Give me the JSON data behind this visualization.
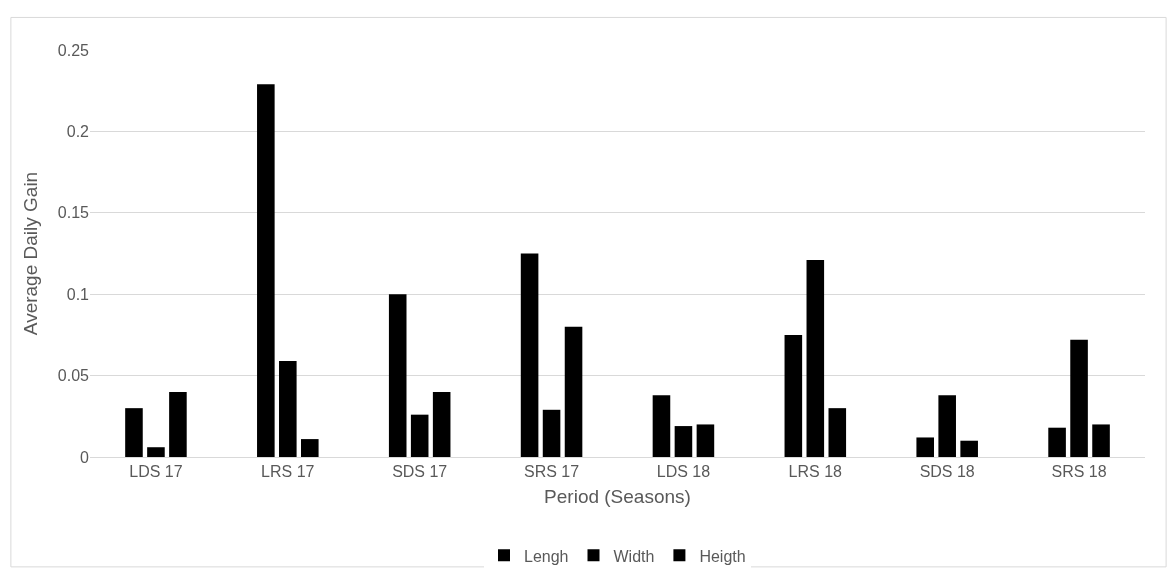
{
  "chart_data": {
    "type": "bar",
    "xlabel": "Period (Seasons)",
    "ylabel": "Average Daily Gain",
    "categories": [
      "LDS 17",
      "LRS 17",
      "SDS 17",
      "SRS 17",
      "LDS 18",
      "LRS 18",
      "SDS 18",
      "SRS 18"
    ],
    "series": [
      {
        "name": "Lengh",
        "color": "#000000",
        "values": [
          0.03,
          0.229,
          0.1,
          0.125,
          0.038,
          0.075,
          0.012,
          0.018
        ]
      },
      {
        "name": "Width",
        "color": "#000000",
        "values": [
          0.006,
          0.059,
          0.026,
          0.029,
          0.019,
          0.121,
          0.038,
          0.072
        ]
      },
      {
        "name": "Heigth",
        "color": "#000000",
        "values": [
          0.04,
          0.011,
          0.04,
          0.08,
          0.02,
          0.03,
          0.01,
          0.02
        ]
      }
    ],
    "ylim": [
      0,
      0.25
    ],
    "yticks": [
      0,
      0.05,
      0.1,
      0.15,
      0.2,
      0.25
    ],
    "grid": "y",
    "legend": "bottom"
  }
}
